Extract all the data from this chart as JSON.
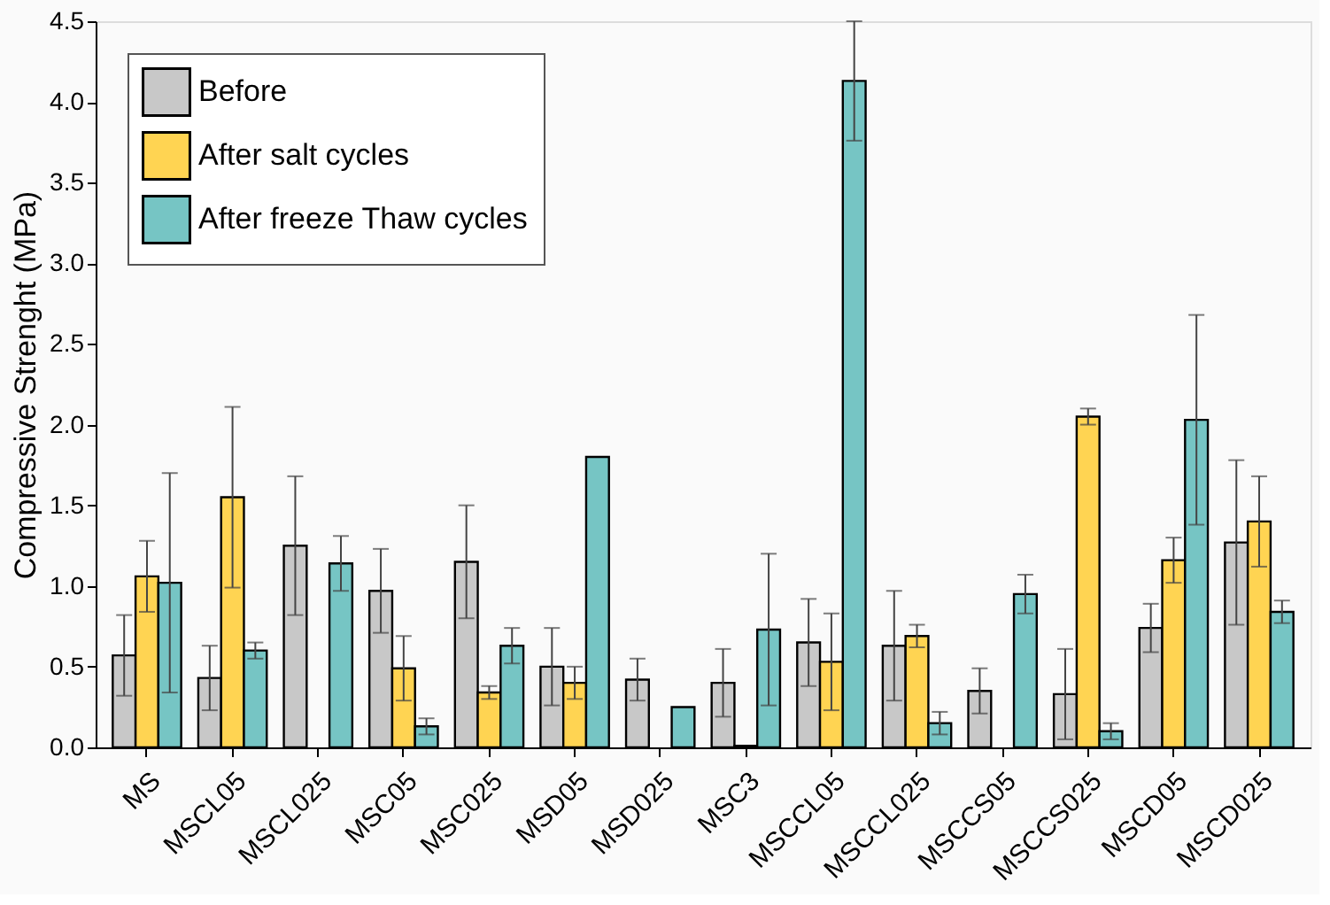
{
  "chart_data": {
    "type": "bar",
    "ylabel": "Compressive Strenght (MPa)",
    "categories": [
      "MS",
      "MSCL05",
      "MSCL025",
      "MSC05",
      "MSC025",
      "MSD05",
      "MSD025",
      "MSC3",
      "MSCCL05",
      "MSCCL025",
      "MSCCS05",
      "MSCCS025",
      "MSCD05",
      "MSCD025"
    ],
    "series": [
      {
        "name": "Before",
        "color": "#c8c8c8",
        "values": [
          0.57,
          0.43,
          1.25,
          0.97,
          1.15,
          0.5,
          0.42,
          0.4,
          0.65,
          0.63,
          0.35,
          0.33,
          0.74,
          1.27
        ],
        "errors": [
          0.25,
          0.2,
          0.43,
          0.26,
          0.35,
          0.24,
          0.13,
          0.21,
          0.27,
          0.34,
          0.14,
          0.28,
          0.15,
          0.51
        ]
      },
      {
        "name": "After salt cycles",
        "color": "#ffd452",
        "values": [
          1.06,
          1.55,
          null,
          0.49,
          0.34,
          0.4,
          null,
          0.01,
          0.53,
          0.69,
          null,
          2.05,
          1.16,
          1.4
        ],
        "errors": [
          0.22,
          0.56,
          null,
          0.2,
          0.04,
          0.1,
          null,
          null,
          0.3,
          0.07,
          null,
          0.05,
          0.14,
          0.28
        ]
      },
      {
        "name": "After freeze Thaw cycles",
        "color": "#76c5c4",
        "values": [
          1.02,
          0.6,
          1.14,
          0.13,
          0.63,
          1.8,
          0.25,
          0.73,
          4.13,
          0.15,
          0.95,
          0.1,
          2.03,
          0.84
        ],
        "errors": [
          0.68,
          0.05,
          0.17,
          0.05,
          0.11,
          null,
          null,
          0.47,
          0.37,
          0.07,
          0.12,
          0.05,
          0.65,
          0.07
        ]
      }
    ],
    "ylim": [
      0,
      4.5
    ],
    "yticks": [
      {
        "value": 0,
        "label": "0.0"
      },
      {
        "value": 0.5,
        "label": "0.5"
      },
      {
        "value": 1,
        "label": "1.0"
      },
      {
        "value": 1.5,
        "label": "1.5"
      },
      {
        "value": 2,
        "label": "2.0"
      },
      {
        "value": 2.5,
        "label": "2.5"
      },
      {
        "value": 3,
        "label": "3.0"
      },
      {
        "value": 3.5,
        "label": "3.5"
      },
      {
        "value": 4,
        "label": "4.0"
      },
      {
        "value": 4.5,
        "label": "4.5"
      }
    ],
    "grid": false,
    "legend": "top left"
  }
}
